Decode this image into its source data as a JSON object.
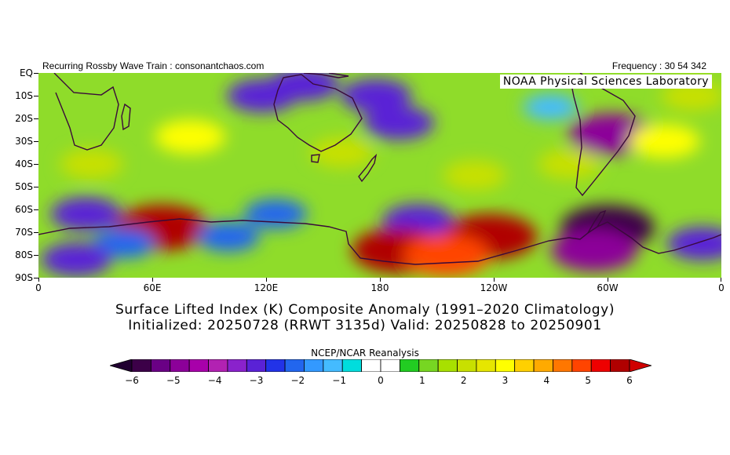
{
  "header": {
    "left": "Recurring Rossby Wave Train : consonantchaos.com",
    "right": "Frequency : 30 54 342",
    "credit": "NOAA Physical Sciences Laboratory"
  },
  "titles": {
    "line1": "Surface Lifted Index (K) Composite Anomaly (1991–2020 Climatology)",
    "line2": "Initialized: 20250728 (RRWT 3135d) Valid: 20250828 to 20250901"
  },
  "colorbar": {
    "title": "NCEP/NCAR Reanalysis",
    "labels": [
      "−6",
      "−5",
      "−4",
      "−3",
      "−2",
      "−1",
      "0",
      "1",
      "2",
      "3",
      "4",
      "5",
      "6"
    ],
    "colors": [
      "#3c0048",
      "#6a0085",
      "#8c0099",
      "#a800aa",
      "#b222b2",
      "#8a22cc",
      "#5a22d6",
      "#2233e8",
      "#2266ee",
      "#3399ff",
      "#44bbff",
      "#00dddd",
      "#ffffff",
      "#ffffff",
      "#22cc22",
      "#77d622",
      "#a8e000",
      "#c8e000",
      "#e6e600",
      "#ffff00",
      "#ffd000",
      "#ffaa00",
      "#ff7700",
      "#ff4400",
      "#ee0000",
      "#b00000"
    ],
    "under_color": "#200030",
    "over_color": "#d00000"
  },
  "map_data": {
    "projection": "cylindrical equidistant",
    "lat_labels": [
      "EQ",
      "10S",
      "20S",
      "30S",
      "40S",
      "50S",
      "60S",
      "70S",
      "80S",
      "90S"
    ],
    "lat_values": [
      0,
      -10,
      -20,
      -30,
      -40,
      -50,
      -60,
      -70,
      -80,
      -90
    ],
    "lon_labels": [
      "0",
      "60E",
      "120E",
      "180",
      "120W",
      "60W",
      "0"
    ],
    "lon_values": [
      0,
      60,
      120,
      180,
      240,
      300,
      360
    ],
    "extent": {
      "lon": [
        0,
        360
      ],
      "lat": [
        -90,
        0
      ]
    },
    "field": "Surface Lifted Index anomaly (K)",
    "anomaly_blobs": [
      {
        "lon": 80,
        "lat": -28,
        "value": 3
      },
      {
        "lon": 28,
        "lat": -40,
        "value": 2
      },
      {
        "lon": 65,
        "lat": -68,
        "value": 6
      },
      {
        "lon": 25,
        "lat": -62,
        "value": -3
      },
      {
        "lon": 45,
        "lat": -75,
        "value": -2
      },
      {
        "lon": 100,
        "lat": -72,
        "value": -2
      },
      {
        "lon": 125,
        "lat": -62,
        "value": -2
      },
      {
        "lon": 118,
        "lat": -10,
        "value": -3
      },
      {
        "lon": 140,
        "lat": -5,
        "value": -3
      },
      {
        "lon": 178,
        "lat": -10,
        "value": -3
      },
      {
        "lon": 190,
        "lat": -22,
        "value": -3
      },
      {
        "lon": 200,
        "lat": -65,
        "value": -3
      },
      {
        "lon": 190,
        "lat": -78,
        "value": 6
      },
      {
        "lon": 238,
        "lat": -72,
        "value": 6
      },
      {
        "lon": 215,
        "lat": -80,
        "value": 5
      },
      {
        "lon": 230,
        "lat": -45,
        "value": 2
      },
      {
        "lon": 160,
        "lat": -35,
        "value": 2
      },
      {
        "lon": 300,
        "lat": -68,
        "value": -6
      },
      {
        "lon": 293,
        "lat": -78,
        "value": -5
      },
      {
        "lon": 302,
        "lat": -27,
        "value": -5
      },
      {
        "lon": 280,
        "lat": -40,
        "value": 2
      },
      {
        "lon": 330,
        "lat": -30,
        "value": 3
      },
      {
        "lon": 345,
        "lat": -10,
        "value": 2
      },
      {
        "lon": 350,
        "lat": -75,
        "value": -3
      },
      {
        "lon": 20,
        "lat": -82,
        "value": -3
      },
      {
        "lon": 270,
        "lat": -15,
        "value": -1
      }
    ]
  }
}
